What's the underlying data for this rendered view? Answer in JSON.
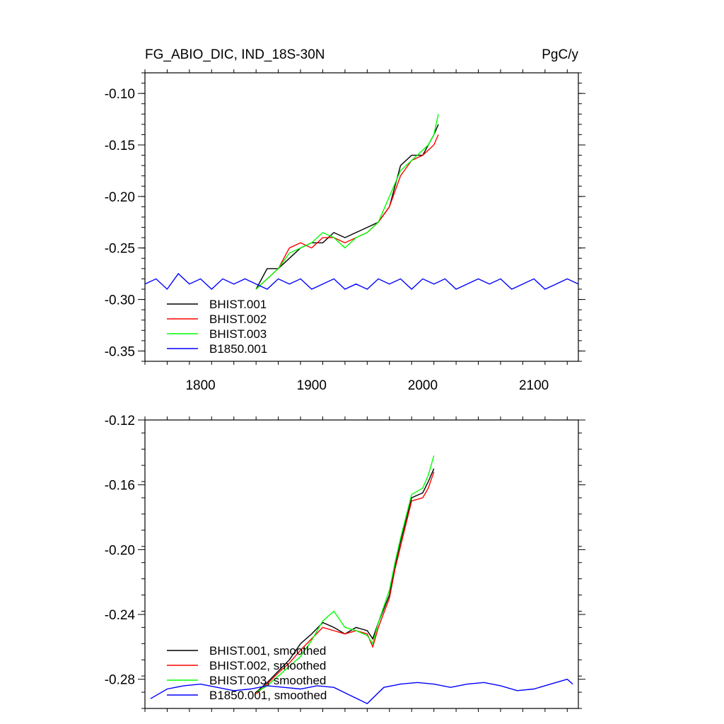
{
  "header": {
    "title": "FG_ABIO_DIC, IND_18S-30N",
    "units": "PgC/y"
  },
  "colors": {
    "BHIST.001": "#000000",
    "BHIST.002": "#ff0000",
    "BHIST.003": "#00ff00",
    "B1850.001": "#0000ff"
  },
  "chart_data": [
    {
      "type": "line",
      "title": "FG_ABIO_DIC, IND_18S-30N",
      "units": "PgC/y",
      "xlim": [
        1750,
        2140
      ],
      "ylim": [
        -0.36,
        -0.08
      ],
      "xticks": [
        1800,
        1900,
        2000,
        2100
      ],
      "xtick_labels": [
        "1800",
        "1900",
        "2000",
        "2100"
      ],
      "yticks": [
        -0.35,
        -0.3,
        -0.25,
        -0.2,
        -0.15,
        -0.1
      ],
      "ytick_labels": [
        "-0.35",
        "-0.30",
        "-0.25",
        "-0.20",
        "-0.15",
        "-0.10"
      ],
      "legend_position": "bottom-left",
      "series": [
        {
          "name": "BHIST.001",
          "color": "#000000",
          "x": [
            1850,
            1860,
            1870,
            1880,
            1890,
            1900,
            1910,
            1920,
            1930,
            1940,
            1950,
            1960,
            1970,
            1980,
            1990,
            2000,
            2005,
            2010,
            2014
          ],
          "y": [
            -0.29,
            -0.27,
            -0.27,
            -0.26,
            -0.25,
            -0.245,
            -0.245,
            -0.235,
            -0.24,
            -0.235,
            -0.23,
            -0.225,
            -0.21,
            -0.17,
            -0.16,
            -0.16,
            -0.15,
            -0.14,
            -0.13
          ]
        },
        {
          "name": "BHIST.002",
          "color": "#ff0000",
          "x": [
            1850,
            1860,
            1870,
            1880,
            1890,
            1900,
            1910,
            1920,
            1930,
            1940,
            1950,
            1960,
            1970,
            1980,
            1990,
            2000,
            2005,
            2010,
            2014
          ],
          "y": [
            -0.29,
            -0.28,
            -0.27,
            -0.25,
            -0.245,
            -0.25,
            -0.24,
            -0.24,
            -0.245,
            -0.24,
            -0.235,
            -0.225,
            -0.21,
            -0.18,
            -0.165,
            -0.16,
            -0.155,
            -0.15,
            -0.14
          ]
        },
        {
          "name": "BHIST.003",
          "color": "#00ff00",
          "x": [
            1850,
            1860,
            1870,
            1880,
            1890,
            1900,
            1910,
            1920,
            1930,
            1940,
            1950,
            1960,
            1970,
            1980,
            1990,
            2000,
            2005,
            2010,
            2014
          ],
          "y": [
            -0.29,
            -0.28,
            -0.27,
            -0.255,
            -0.25,
            -0.245,
            -0.235,
            -0.24,
            -0.25,
            -0.24,
            -0.235,
            -0.225,
            -0.2,
            -0.175,
            -0.165,
            -0.155,
            -0.15,
            -0.14,
            -0.12
          ]
        },
        {
          "name": "B1850.001",
          "color": "#0000ff",
          "x": [
            1750,
            1760,
            1770,
            1780,
            1790,
            1800,
            1810,
            1820,
            1830,
            1840,
            1850,
            1860,
            1870,
            1880,
            1890,
            1900,
            1910,
            1920,
            1930,
            1940,
            1950,
            1960,
            1970,
            1980,
            1990,
            2000,
            2010,
            2020,
            2030,
            2040,
            2050,
            2060,
            2070,
            2080,
            2090,
            2100,
            2110,
            2120,
            2130,
            2140
          ],
          "y": [
            -0.285,
            -0.28,
            -0.29,
            -0.275,
            -0.285,
            -0.28,
            -0.29,
            -0.28,
            -0.285,
            -0.28,
            -0.285,
            -0.29,
            -0.28,
            -0.285,
            -0.28,
            -0.29,
            -0.285,
            -0.28,
            -0.29,
            -0.285,
            -0.29,
            -0.28,
            -0.285,
            -0.28,
            -0.29,
            -0.28,
            -0.285,
            -0.28,
            -0.29,
            -0.285,
            -0.28,
            -0.285,
            -0.28,
            -0.29,
            -0.285,
            -0.28,
            -0.29,
            -0.285,
            -0.28,
            -0.285
          ]
        }
      ]
    },
    {
      "type": "line",
      "xlim": [
        1750,
        2140
      ],
      "ylim": [
        -0.298,
        -0.12
      ],
      "xticks": [
        1800,
        1900,
        2000,
        2100
      ],
      "yticks": [
        -0.28,
        -0.24,
        -0.2,
        -0.16,
        -0.12
      ],
      "ytick_labels": [
        "-0.28",
        "-0.24",
        "-0.20",
        "-0.16",
        "-0.12"
      ],
      "legend_position": "bottom-left",
      "series": [
        {
          "name": "BHIST.001, smoothed",
          "color": "#000000",
          "x": [
            1850,
            1860,
            1870,
            1880,
            1890,
            1900,
            1910,
            1920,
            1930,
            1940,
            1950,
            1955,
            1960,
            1970,
            1975,
            1980,
            1990,
            2000,
            2005,
            2010
          ],
          "y": [
            -0.288,
            -0.282,
            -0.275,
            -0.268,
            -0.258,
            -0.252,
            -0.245,
            -0.248,
            -0.252,
            -0.248,
            -0.25,
            -0.255,
            -0.245,
            -0.228,
            -0.21,
            -0.195,
            -0.168,
            -0.165,
            -0.158,
            -0.15
          ]
        },
        {
          "name": "BHIST.002, smoothed",
          "color": "#ff0000",
          "x": [
            1850,
            1860,
            1870,
            1880,
            1890,
            1900,
            1910,
            1920,
            1930,
            1940,
            1950,
            1955,
            1960,
            1970,
            1975,
            1980,
            1990,
            2000,
            2005,
            2010
          ],
          "y": [
            -0.289,
            -0.283,
            -0.276,
            -0.27,
            -0.262,
            -0.255,
            -0.248,
            -0.25,
            -0.252,
            -0.25,
            -0.252,
            -0.26,
            -0.248,
            -0.23,
            -0.212,
            -0.198,
            -0.17,
            -0.168,
            -0.162,
            -0.152
          ]
        },
        {
          "name": "BHIST.003, smoothed",
          "color": "#00ff00",
          "x": [
            1850,
            1860,
            1870,
            1880,
            1890,
            1900,
            1910,
            1920,
            1930,
            1940,
            1950,
            1955,
            1960,
            1970,
            1975,
            1980,
            1990,
            2000,
            2005,
            2010
          ],
          "y": [
            -0.288,
            -0.284,
            -0.278,
            -0.272,
            -0.266,
            -0.256,
            -0.244,
            -0.238,
            -0.248,
            -0.25,
            -0.253,
            -0.258,
            -0.245,
            -0.225,
            -0.208,
            -0.193,
            -0.166,
            -0.162,
            -0.154,
            -0.142
          ]
        },
        {
          "name": "B1850.001, smoothed",
          "color": "#0000ff",
          "x": [
            1755,
            1770,
            1785,
            1800,
            1815,
            1830,
            1845,
            1860,
            1875,
            1890,
            1905,
            1920,
            1935,
            1950,
            1965,
            1980,
            1995,
            2010,
            2025,
            2040,
            2055,
            2070,
            2085,
            2100,
            2115,
            2130,
            2135
          ],
          "y": [
            -0.292,
            -0.286,
            -0.284,
            -0.283,
            -0.285,
            -0.287,
            -0.286,
            -0.284,
            -0.285,
            -0.286,
            -0.284,
            -0.285,
            -0.29,
            -0.295,
            -0.285,
            -0.283,
            -0.282,
            -0.283,
            -0.285,
            -0.283,
            -0.282,
            -0.284,
            -0.287,
            -0.286,
            -0.283,
            -0.28,
            -0.283
          ]
        }
      ]
    }
  ]
}
